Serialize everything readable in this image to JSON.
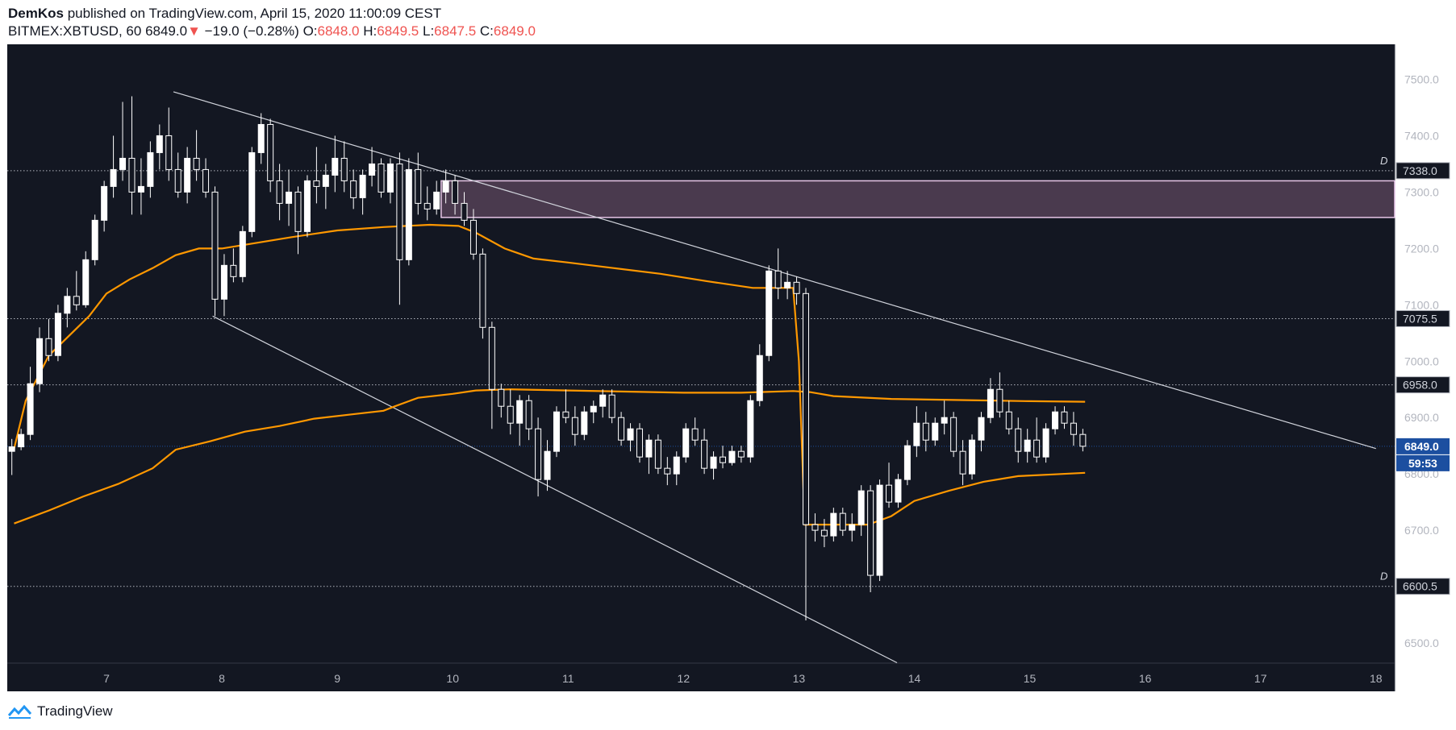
{
  "header": {
    "publisher": "DemKos",
    "published_text": " published on TradingView.com, April 15, 2020 11:00:09 CEST",
    "symbol": "BITMEX:XBTUSD, 60",
    "last": "6849.0",
    "change_arrow": "▼",
    "change": "−19.0 (−0.28%)",
    "o_label": "O:",
    "o_value": "6848.0",
    "h_label": "H:",
    "h_value": "6849.5",
    "l_label": "L:",
    "l_value": "6847.5",
    "c_label": "C:",
    "c_value": "6849.0"
  },
  "footer": {
    "brand": "TradingView",
    "icon": "tradingview-logo-icon"
  },
  "colors": {
    "background": "#131722",
    "candle": "#ffffff",
    "ma": "#ff9800",
    "zone": "#4a3a4e",
    "zone_border": "#e8c7e8",
    "price_badge": "#1c4fa0"
  },
  "chart_data": {
    "type": "candlestick",
    "x_axis": {
      "ticks": [
        "7",
        "8",
        "9",
        "10",
        "11",
        "12",
        "13",
        "14",
        "15",
        "16",
        "17",
        "18"
      ]
    },
    "y_axis": {
      "range": [
        6450,
        7600
      ],
      "ticks": [
        "7500.0",
        "7400.0",
        "7300.0",
        "7200.0",
        "7100.0",
        "7000.0",
        "6900.0",
        "6800.0",
        "6700.0",
        "6600.0",
        "6500.0"
      ]
    },
    "price_labels": [
      {
        "value": 7338.0,
        "text": "7338.0",
        "marker": "D"
      },
      {
        "value": 7075.5,
        "text": "7075.5",
        "marker": ""
      },
      {
        "value": 6958.0,
        "text": "6958.0",
        "marker": ""
      },
      {
        "value": 6600.5,
        "text": "6600.5",
        "marker": "D"
      }
    ],
    "current_price": {
      "value": 6849.0,
      "text": "6849.0",
      "countdown": "59:53"
    },
    "zone": {
      "top": 7320,
      "bottom": 7255,
      "from_day": 9.9
    },
    "trendlines": [
      {
        "from": [
          7.58,
          7478
        ],
        "to": [
          18,
          6845
        ]
      },
      {
        "from": [
          7.92,
          7080
        ],
        "to": [
          13.85,
          6465
        ]
      }
    ],
    "moving_averages": [
      {
        "points": [
          [
            6.2,
            6845
          ],
          [
            6.3,
            6930
          ],
          [
            6.5,
            7010
          ],
          [
            6.7,
            7050
          ],
          [
            6.85,
            7080
          ],
          [
            7.0,
            7120
          ],
          [
            7.2,
            7145
          ],
          [
            7.4,
            7165
          ],
          [
            7.6,
            7188
          ],
          [
            7.8,
            7200
          ],
          [
            8.0,
            7200
          ],
          [
            8.3,
            7210
          ],
          [
            8.6,
            7220
          ],
          [
            9.0,
            7232
          ],
          [
            9.4,
            7238
          ],
          [
            9.8,
            7242
          ],
          [
            10.05,
            7240
          ],
          [
            10.2,
            7228
          ],
          [
            10.45,
            7200
          ],
          [
            10.7,
            7182
          ],
          [
            11.0,
            7175
          ],
          [
            11.4,
            7165
          ],
          [
            11.8,
            7155
          ],
          [
            12.2,
            7142
          ],
          [
            12.6,
            7130
          ],
          [
            12.95,
            7130
          ],
          [
            13.0,
            7000
          ],
          [
            13.05,
            6710
          ],
          [
            13.3,
            6710
          ],
          [
            13.6,
            6710
          ],
          [
            13.8,
            6725
          ],
          [
            14.0,
            6752
          ],
          [
            14.3,
            6770
          ],
          [
            14.6,
            6786
          ],
          [
            14.9,
            6796
          ],
          [
            15.2,
            6799
          ],
          [
            15.48,
            6802
          ]
        ]
      },
      {
        "points": [
          [
            6.2,
            6712
          ],
          [
            6.5,
            6735
          ],
          [
            6.8,
            6760
          ],
          [
            7.1,
            6782
          ],
          [
            7.4,
            6810
          ],
          [
            7.6,
            6843
          ],
          [
            7.9,
            6858
          ],
          [
            8.2,
            6875
          ],
          [
            8.5,
            6885
          ],
          [
            8.8,
            6898
          ],
          [
            9.1,
            6905
          ],
          [
            9.4,
            6912
          ],
          [
            9.5,
            6920
          ],
          [
            9.7,
            6935
          ],
          [
            10.0,
            6942
          ],
          [
            10.2,
            6948
          ],
          [
            10.5,
            6950
          ],
          [
            11.0,
            6948
          ],
          [
            11.5,
            6946
          ],
          [
            12.0,
            6944
          ],
          [
            12.5,
            6944
          ],
          [
            12.95,
            6947
          ],
          [
            13.1,
            6945
          ],
          [
            13.3,
            6938
          ],
          [
            13.8,
            6933
          ],
          [
            14.4,
            6931
          ],
          [
            15.0,
            6929
          ],
          [
            15.48,
            6928
          ]
        ]
      }
    ],
    "series": [
      {
        "x": 6.18,
        "o": 6840,
        "h": 6862,
        "l": 6798,
        "c": 6848
      },
      {
        "x": 6.26,
        "o": 6848,
        "h": 6880,
        "l": 6842,
        "c": 6870
      },
      {
        "x": 6.34,
        "o": 6870,
        "h": 6990,
        "l": 6860,
        "c": 6960
      },
      {
        "x": 6.42,
        "o": 6960,
        "h": 7060,
        "l": 6945,
        "c": 7040
      },
      {
        "x": 6.5,
        "o": 7040,
        "h": 7075,
        "l": 7000,
        "c": 7010
      },
      {
        "x": 6.58,
        "o": 7010,
        "h": 7100,
        "l": 7000,
        "c": 7085
      },
      {
        "x": 6.66,
        "o": 7085,
        "h": 7130,
        "l": 7060,
        "c": 7115
      },
      {
        "x": 6.74,
        "o": 7115,
        "h": 7160,
        "l": 7090,
        "c": 7100
      },
      {
        "x": 6.82,
        "o": 7100,
        "h": 7195,
        "l": 7095,
        "c": 7180
      },
      {
        "x": 6.9,
        "o": 7180,
        "h": 7260,
        "l": 7170,
        "c": 7250
      },
      {
        "x": 6.98,
        "o": 7250,
        "h": 7320,
        "l": 7230,
        "c": 7310
      },
      {
        "x": 7.06,
        "o": 7310,
        "h": 7400,
        "l": 7290,
        "c": 7340
      },
      {
        "x": 7.14,
        "o": 7340,
        "h": 7460,
        "l": 7320,
        "c": 7360
      },
      {
        "x": 7.22,
        "o": 7360,
        "h": 7470,
        "l": 7260,
        "c": 7300
      },
      {
        "x": 7.3,
        "o": 7300,
        "h": 7360,
        "l": 7260,
        "c": 7310
      },
      {
        "x": 7.38,
        "o": 7310,
        "h": 7390,
        "l": 7290,
        "c": 7370
      },
      {
        "x": 7.46,
        "o": 7370,
        "h": 7420,
        "l": 7340,
        "c": 7400
      },
      {
        "x": 7.54,
        "o": 7400,
        "h": 7450,
        "l": 7320,
        "c": 7340
      },
      {
        "x": 7.62,
        "o": 7340,
        "h": 7370,
        "l": 7290,
        "c": 7300
      },
      {
        "x": 7.7,
        "o": 7300,
        "h": 7380,
        "l": 7280,
        "c": 7360
      },
      {
        "x": 7.78,
        "o": 7360,
        "h": 7410,
        "l": 7320,
        "c": 7340
      },
      {
        "x": 7.86,
        "o": 7340,
        "h": 7360,
        "l": 7290,
        "c": 7300
      },
      {
        "x": 7.94,
        "o": 7300,
        "h": 7310,
        "l": 7080,
        "c": 7110
      },
      {
        "x": 8.02,
        "o": 7110,
        "h": 7190,
        "l": 7080,
        "c": 7170
      },
      {
        "x": 8.1,
        "o": 7170,
        "h": 7200,
        "l": 7140,
        "c": 7150
      },
      {
        "x": 8.18,
        "o": 7150,
        "h": 7240,
        "l": 7140,
        "c": 7230
      },
      {
        "x": 8.26,
        "o": 7230,
        "h": 7380,
        "l": 7220,
        "c": 7370
      },
      {
        "x": 8.34,
        "o": 7370,
        "h": 7440,
        "l": 7350,
        "c": 7420
      },
      {
        "x": 8.42,
        "o": 7420,
        "h": 7430,
        "l": 7300,
        "c": 7320
      },
      {
        "x": 8.5,
        "o": 7320,
        "h": 7350,
        "l": 7250,
        "c": 7280
      },
      {
        "x": 8.58,
        "o": 7280,
        "h": 7340,
        "l": 7240,
        "c": 7300
      },
      {
        "x": 8.66,
        "o": 7300,
        "h": 7310,
        "l": 7190,
        "c": 7230
      },
      {
        "x": 8.74,
        "o": 7230,
        "h": 7330,
        "l": 7220,
        "c": 7320
      },
      {
        "x": 8.82,
        "o": 7320,
        "h": 7380,
        "l": 7280,
        "c": 7310
      },
      {
        "x": 8.9,
        "o": 7310,
        "h": 7350,
        "l": 7270,
        "c": 7330
      },
      {
        "x": 8.98,
        "o": 7330,
        "h": 7400,
        "l": 7300,
        "c": 7360
      },
      {
        "x": 9.06,
        "o": 7360,
        "h": 7390,
        "l": 7300,
        "c": 7320
      },
      {
        "x": 9.14,
        "o": 7320,
        "h": 7340,
        "l": 7270,
        "c": 7290
      },
      {
        "x": 9.22,
        "o": 7290,
        "h": 7340,
        "l": 7260,
        "c": 7330
      },
      {
        "x": 9.3,
        "o": 7330,
        "h": 7380,
        "l": 7310,
        "c": 7350
      },
      {
        "x": 9.38,
        "o": 7350,
        "h": 7360,
        "l": 7290,
        "c": 7300
      },
      {
        "x": 9.46,
        "o": 7300,
        "h": 7360,
        "l": 7280,
        "c": 7350
      },
      {
        "x": 9.54,
        "o": 7350,
        "h": 7370,
        "l": 7100,
        "c": 7180
      },
      {
        "x": 9.62,
        "o": 7180,
        "h": 7360,
        "l": 7170,
        "c": 7340
      },
      {
        "x": 9.7,
        "o": 7340,
        "h": 7370,
        "l": 7260,
        "c": 7280
      },
      {
        "x": 9.78,
        "o": 7280,
        "h": 7310,
        "l": 7250,
        "c": 7270
      },
      {
        "x": 9.86,
        "o": 7270,
        "h": 7320,
        "l": 7260,
        "c": 7300
      },
      {
        "x": 9.94,
        "o": 7300,
        "h": 7340,
        "l": 7280,
        "c": 7320
      },
      {
        "x": 10.02,
        "o": 7320,
        "h": 7330,
        "l": 7260,
        "c": 7280
      },
      {
        "x": 10.1,
        "o": 7280,
        "h": 7300,
        "l": 7240,
        "c": 7250
      },
      {
        "x": 10.18,
        "o": 7250,
        "h": 7270,
        "l": 7180,
        "c": 7190
      },
      {
        "x": 10.26,
        "o": 7190,
        "h": 7200,
        "l": 7040,
        "c": 7060
      },
      {
        "x": 10.34,
        "o": 7060,
        "h": 7070,
        "l": 6880,
        "c": 6950
      },
      {
        "x": 10.42,
        "o": 6950,
        "h": 6960,
        "l": 6900,
        "c": 6920
      },
      {
        "x": 10.5,
        "o": 6920,
        "h": 6950,
        "l": 6870,
        "c": 6890
      },
      {
        "x": 10.58,
        "o": 6890,
        "h": 6940,
        "l": 6850,
        "c": 6930
      },
      {
        "x": 10.66,
        "o": 6930,
        "h": 6940,
        "l": 6860,
        "c": 6880
      },
      {
        "x": 10.74,
        "o": 6880,
        "h": 6900,
        "l": 6760,
        "c": 6790
      },
      {
        "x": 10.82,
        "o": 6790,
        "h": 6860,
        "l": 6770,
        "c": 6840
      },
      {
        "x": 10.9,
        "o": 6840,
        "h": 6920,
        "l": 6830,
        "c": 6910
      },
      {
        "x": 10.98,
        "o": 6910,
        "h": 6950,
        "l": 6890,
        "c": 6900
      },
      {
        "x": 11.06,
        "o": 6900,
        "h": 6920,
        "l": 6850,
        "c": 6870
      },
      {
        "x": 11.14,
        "o": 6870,
        "h": 6920,
        "l": 6860,
        "c": 6910
      },
      {
        "x": 11.22,
        "o": 6910,
        "h": 6930,
        "l": 6890,
        "c": 6920
      },
      {
        "x": 11.3,
        "o": 6920,
        "h": 6950,
        "l": 6900,
        "c": 6940
      },
      {
        "x": 11.38,
        "o": 6940,
        "h": 6950,
        "l": 6890,
        "c": 6900
      },
      {
        "x": 11.46,
        "o": 6900,
        "h": 6910,
        "l": 6850,
        "c": 6860
      },
      {
        "x": 11.54,
        "o": 6860,
        "h": 6890,
        "l": 6840,
        "c": 6880
      },
      {
        "x": 11.62,
        "o": 6880,
        "h": 6890,
        "l": 6820,
        "c": 6830
      },
      {
        "x": 11.7,
        "o": 6830,
        "h": 6870,
        "l": 6800,
        "c": 6860
      },
      {
        "x": 11.78,
        "o": 6860,
        "h": 6870,
        "l": 6800,
        "c": 6810
      },
      {
        "x": 11.86,
        "o": 6810,
        "h": 6830,
        "l": 6780,
        "c": 6800
      },
      {
        "x": 11.94,
        "o": 6800,
        "h": 6840,
        "l": 6780,
        "c": 6830
      },
      {
        "x": 12.02,
        "o": 6830,
        "h": 6890,
        "l": 6820,
        "c": 6880
      },
      {
        "x": 12.1,
        "o": 6880,
        "h": 6900,
        "l": 6850,
        "c": 6860
      },
      {
        "x": 12.18,
        "o": 6860,
        "h": 6880,
        "l": 6800,
        "c": 6810
      },
      {
        "x": 12.26,
        "o": 6810,
        "h": 6840,
        "l": 6790,
        "c": 6830
      },
      {
        "x": 12.34,
        "o": 6830,
        "h": 6850,
        "l": 6810,
        "c": 6820
      },
      {
        "x": 12.42,
        "o": 6820,
        "h": 6850,
        "l": 6815,
        "c": 6840
      },
      {
        "x": 12.5,
        "o": 6840,
        "h": 6850,
        "l": 6820,
        "c": 6830
      },
      {
        "x": 12.58,
        "o": 6830,
        "h": 6940,
        "l": 6820,
        "c": 6930
      },
      {
        "x": 12.66,
        "o": 6930,
        "h": 7030,
        "l": 6920,
        "c": 7010
      },
      {
        "x": 12.74,
        "o": 7010,
        "h": 7170,
        "l": 7000,
        "c": 7160
      },
      {
        "x": 12.82,
        "o": 7160,
        "h": 7200,
        "l": 7110,
        "c": 7130
      },
      {
        "x": 12.9,
        "o": 7130,
        "h": 7160,
        "l": 7110,
        "c": 7140
      },
      {
        "x": 12.98,
        "o": 7140,
        "h": 7150,
        "l": 7100,
        "c": 7120
      },
      {
        "x": 13.06,
        "o": 7120,
        "h": 7130,
        "l": 6540,
        "c": 6710
      },
      {
        "x": 13.14,
        "o": 6710,
        "h": 6730,
        "l": 6680,
        "c": 6700
      },
      {
        "x": 13.22,
        "o": 6700,
        "h": 6720,
        "l": 6670,
        "c": 6690
      },
      {
        "x": 13.3,
        "o": 6690,
        "h": 6740,
        "l": 6680,
        "c": 6730
      },
      {
        "x": 13.38,
        "o": 6730,
        "h": 6740,
        "l": 6690,
        "c": 6700
      },
      {
        "x": 13.46,
        "o": 6700,
        "h": 6730,
        "l": 6680,
        "c": 6710
      },
      {
        "x": 13.54,
        "o": 6710,
        "h": 6780,
        "l": 6690,
        "c": 6770
      },
      {
        "x": 13.62,
        "o": 6770,
        "h": 6780,
        "l": 6590,
        "c": 6620
      },
      {
        "x": 13.7,
        "o": 6620,
        "h": 6790,
        "l": 6610,
        "c": 6780
      },
      {
        "x": 13.78,
        "o": 6780,
        "h": 6820,
        "l": 6740,
        "c": 6750
      },
      {
        "x": 13.86,
        "o": 6750,
        "h": 6800,
        "l": 6740,
        "c": 6790
      },
      {
        "x": 13.94,
        "o": 6790,
        "h": 6860,
        "l": 6780,
        "c": 6850
      },
      {
        "x": 14.02,
        "o": 6850,
        "h": 6920,
        "l": 6830,
        "c": 6890
      },
      {
        "x": 14.1,
        "o": 6890,
        "h": 6910,
        "l": 6840,
        "c": 6860
      },
      {
        "x": 14.18,
        "o": 6860,
        "h": 6900,
        "l": 6850,
        "c": 6890
      },
      {
        "x": 14.26,
        "o": 6890,
        "h": 6930,
        "l": 6870,
        "c": 6900
      },
      {
        "x": 14.34,
        "o": 6900,
        "h": 6910,
        "l": 6830,
        "c": 6840
      },
      {
        "x": 14.42,
        "o": 6840,
        "h": 6860,
        "l": 6780,
        "c": 6800
      },
      {
        "x": 14.5,
        "o": 6800,
        "h": 6870,
        "l": 6790,
        "c": 6860
      },
      {
        "x": 14.58,
        "o": 6860,
        "h": 6910,
        "l": 6840,
        "c": 6900
      },
      {
        "x": 14.66,
        "o": 6900,
        "h": 6970,
        "l": 6890,
        "c": 6950
      },
      {
        "x": 14.74,
        "o": 6950,
        "h": 6980,
        "l": 6900,
        "c": 6910
      },
      {
        "x": 14.82,
        "o": 6910,
        "h": 6930,
        "l": 6870,
        "c": 6880
      },
      {
        "x": 14.9,
        "o": 6880,
        "h": 6900,
        "l": 6820,
        "c": 6840
      },
      {
        "x": 14.98,
        "o": 6840,
        "h": 6880,
        "l": 6820,
        "c": 6860
      },
      {
        "x": 15.06,
        "o": 6860,
        "h": 6900,
        "l": 6820,
        "c": 6830
      },
      {
        "x": 15.14,
        "o": 6830,
        "h": 6890,
        "l": 6820,
        "c": 6880
      },
      {
        "x": 15.22,
        "o": 6880,
        "h": 6920,
        "l": 6870,
        "c": 6910
      },
      {
        "x": 15.3,
        "o": 6910,
        "h": 6920,
        "l": 6880,
        "c": 6890
      },
      {
        "x": 15.38,
        "o": 6890,
        "h": 6910,
        "l": 6850,
        "c": 6870
      },
      {
        "x": 15.46,
        "o": 6870,
        "h": 6880,
        "l": 6840,
        "c": 6849
      }
    ]
  }
}
